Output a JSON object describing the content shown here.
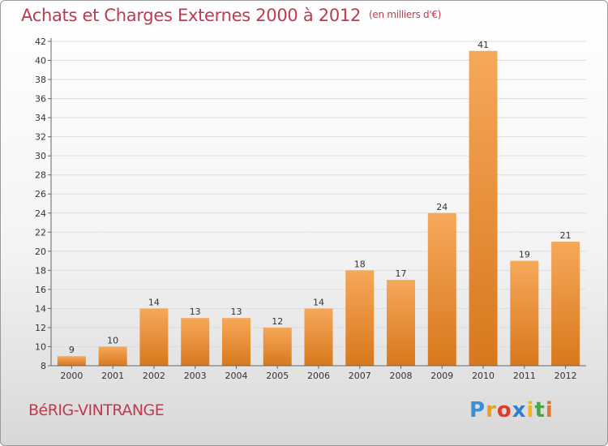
{
  "header": {
    "title": "Achats et Charges Externes 2000 à 2012",
    "unit": "(en milliers d'€)"
  },
  "footer": {
    "commune": "BéRIG-VINTRANGE",
    "brand_letters": [
      "P",
      "r",
      "o",
      "x",
      "i",
      "t",
      "i"
    ],
    "brand_colors": [
      "#3a8fd6",
      "#e8a01c",
      "#e23a2c",
      "#2f7fd0",
      "#f0b51c",
      "#4aa54a",
      "#e8742a"
    ]
  },
  "colors": {
    "bar_light": "#f6a85a",
    "bar_dark": "#d8781c",
    "axis": "#666666",
    "grid": "#dddddd"
  },
  "chart_data": {
    "type": "bar",
    "title": "Achats et Charges Externes 2000 à 2012",
    "subtitle": "(en milliers d'€)",
    "xlabel": "",
    "ylabel": "",
    "categories": [
      "2000",
      "2001",
      "2002",
      "2003",
      "2004",
      "2005",
      "2006",
      "2007",
      "2008",
      "2009",
      "2010",
      "2011",
      "2012"
    ],
    "values": [
      9,
      10,
      14,
      13,
      13,
      12,
      14,
      18,
      17,
      24,
      41,
      19,
      21
    ],
    "ylim": [
      8,
      42
    ],
    "yticks": [
      8,
      10,
      12,
      14,
      16,
      18,
      20,
      22,
      24,
      26,
      28,
      30,
      32,
      34,
      36,
      38,
      40,
      42
    ],
    "grid": true,
    "legend": "none"
  }
}
